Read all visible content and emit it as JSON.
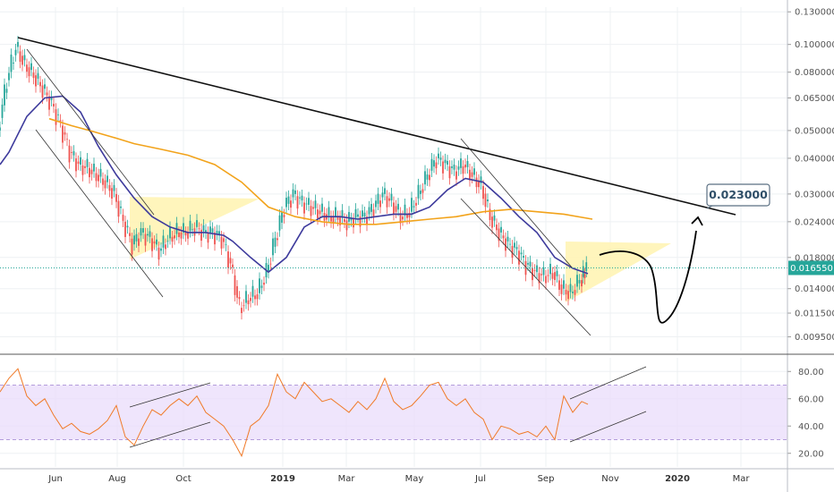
{
  "chart_data": {
    "type": "line",
    "panels": [
      {
        "name": "",
        "scale": "log",
        "y_ticks": [
          "0.130000",
          "0.100000",
          "0.080000",
          "0.065000",
          "0.050000",
          "0.040000",
          "0.030000",
          "0.024000",
          "0.018000",
          "0.014000",
          "0.011500",
          "0.009500"
        ],
        "current_price": "0.016550",
        "callout_label": "0.023000",
        "series": [
          {
            "name": "",
            "color": "#2f9e8f",
            "type": "candle-approx",
            "points": [
              [
                0,
                0.05
              ],
              [
                10,
                0.075
              ],
              [
                20,
                0.098
              ],
              [
                30,
                0.085
              ],
              [
                40,
                0.078
              ],
              [
                50,
                0.07
              ],
              [
                60,
                0.062
              ],
              [
                70,
                0.052
              ],
              [
                80,
                0.042
              ],
              [
                90,
                0.038
              ],
              [
                100,
                0.037
              ],
              [
                110,
                0.035
              ],
              [
                120,
                0.033
              ],
              [
                130,
                0.03
              ],
              [
                140,
                0.024
              ],
              [
                150,
                0.02
              ],
              [
                160,
                0.022
              ],
              [
                170,
                0.021
              ],
              [
                180,
                0.019
              ],
              [
                190,
                0.021
              ],
              [
                200,
                0.022
              ],
              [
                210,
                0.022
              ],
              [
                220,
                0.023
              ],
              [
                230,
                0.022
              ],
              [
                240,
                0.022
              ],
              [
                250,
                0.021
              ],
              [
                260,
                0.017
              ],
              [
                270,
                0.012
              ],
              [
                280,
                0.013
              ],
              [
                290,
                0.0135
              ],
              [
                300,
                0.016
              ],
              [
                310,
                0.021
              ],
              [
                320,
                0.027
              ],
              [
                330,
                0.03
              ],
              [
                340,
                0.028
              ],
              [
                350,
                0.027
              ],
              [
                360,
                0.026
              ],
              [
                370,
                0.025
              ],
              [
                380,
                0.025
              ],
              [
                390,
                0.024
              ],
              [
                400,
                0.025
              ],
              [
                410,
                0.025
              ],
              [
                420,
                0.027
              ],
              [
                430,
                0.03
              ],
              [
                440,
                0.028
              ],
              [
                450,
                0.025
              ],
              [
                460,
                0.026
              ],
              [
                470,
                0.03
              ],
              [
                480,
                0.035
              ],
              [
                490,
                0.04
              ],
              [
                500,
                0.038
              ],
              [
                510,
                0.036
              ],
              [
                520,
                0.038
              ],
              [
                530,
                0.035
              ],
              [
                540,
                0.032
              ],
              [
                550,
                0.025
              ],
              [
                560,
                0.022
              ],
              [
                570,
                0.02
              ],
              [
                580,
                0.019
              ],
              [
                590,
                0.017
              ],
              [
                600,
                0.016
              ],
              [
                610,
                0.0155
              ],
              [
                620,
                0.016
              ],
              [
                630,
                0.014
              ],
              [
                640,
                0.0135
              ],
              [
                650,
                0.015
              ],
              [
                657,
                0.01655
              ]
            ]
          },
          {
            "name": "",
            "color": "#3d3a9c",
            "points": [
              [
                0,
                0.038
              ],
              [
                10,
                0.042
              ],
              [
                30,
                0.056
              ],
              [
                50,
                0.065
              ],
              [
                70,
                0.066
              ],
              [
                90,
                0.058
              ],
              [
                110,
                0.044
              ],
              [
                130,
                0.035
              ],
              [
                150,
                0.029
              ],
              [
                170,
                0.025
              ],
              [
                190,
                0.023
              ],
              [
                210,
                0.022
              ],
              [
                230,
                0.022
              ],
              [
                250,
                0.0215
              ],
              [
                260,
                0.0205
              ],
              [
                280,
                0.018
              ],
              [
                300,
                0.016
              ],
              [
                320,
                0.018
              ],
              [
                340,
                0.023
              ],
              [
                360,
                0.025
              ],
              [
                380,
                0.025
              ],
              [
                400,
                0.0245
              ],
              [
                420,
                0.025
              ],
              [
                440,
                0.0255
              ],
              [
                460,
                0.0255
              ],
              [
                480,
                0.027
              ],
              [
                500,
                0.031
              ],
              [
                520,
                0.034
              ],
              [
                540,
                0.033
              ],
              [
                560,
                0.029
              ],
              [
                580,
                0.025
              ],
              [
                600,
                0.022
              ],
              [
                620,
                0.018
              ],
              [
                640,
                0.0165
              ],
              [
                657,
                0.0158
              ]
            ]
          },
          {
            "name": "",
            "color": "#f2a31b",
            "points": [
              [
                55,
                0.055
              ],
              [
                80,
                0.052
              ],
              [
                100,
                0.05
              ],
              [
                130,
                0.047
              ],
              [
                150,
                0.045
              ],
              [
                180,
                0.043
              ],
              [
                210,
                0.041
              ],
              [
                240,
                0.038
              ],
              [
                270,
                0.033
              ],
              [
                300,
                0.027
              ],
              [
                330,
                0.025
              ],
              [
                360,
                0.024
              ],
              [
                390,
                0.0235
              ],
              [
                420,
                0.0235
              ],
              [
                450,
                0.024
              ],
              [
                480,
                0.0245
              ],
              [
                510,
                0.025
              ],
              [
                540,
                0.026
              ],
              [
                570,
                0.0265
              ],
              [
                600,
                0.026
              ],
              [
                630,
                0.0255
              ],
              [
                662,
                0.0245
              ]
            ]
          }
        ]
      },
      {
        "name": "",
        "y_ticks": [
          "80.00",
          "60.00",
          "40.00",
          "20.00"
        ],
        "band": [
          30,
          70
        ],
        "series": [
          {
            "name": "",
            "color": "#f07a28",
            "points": [
              [
                0,
                65
              ],
              [
                10,
                75
              ],
              [
                20,
                82
              ],
              [
                30,
                62
              ],
              [
                40,
                55
              ],
              [
                50,
                60
              ],
              [
                60,
                48
              ],
              [
                70,
                38
              ],
              [
                80,
                42
              ],
              [
                90,
                36
              ],
              [
                100,
                34
              ],
              [
                110,
                38
              ],
              [
                120,
                44
              ],
              [
                130,
                55
              ],
              [
                140,
                32
              ],
              [
                150,
                26
              ],
              [
                160,
                40
              ],
              [
                170,
                52
              ],
              [
                180,
                48
              ],
              [
                190,
                55
              ],
              [
                200,
                60
              ],
              [
                210,
                55
              ],
              [
                220,
                62
              ],
              [
                230,
                50
              ],
              [
                240,
                45
              ],
              [
                250,
                40
              ],
              [
                260,
                30
              ],
              [
                270,
                18
              ],
              [
                280,
                40
              ],
              [
                290,
                45
              ],
              [
                300,
                55
              ],
              [
                310,
                78
              ],
              [
                320,
                65
              ],
              [
                330,
                60
              ],
              [
                340,
                72
              ],
              [
                350,
                65
              ],
              [
                360,
                58
              ],
              [
                370,
                60
              ],
              [
                380,
                55
              ],
              [
                390,
                50
              ],
              [
                400,
                58
              ],
              [
                410,
                52
              ],
              [
                420,
                60
              ],
              [
                430,
                75
              ],
              [
                440,
                58
              ],
              [
                450,
                52
              ],
              [
                460,
                55
              ],
              [
                470,
                62
              ],
              [
                480,
                70
              ],
              [
                490,
                72
              ],
              [
                500,
                60
              ],
              [
                510,
                55
              ],
              [
                520,
                60
              ],
              [
                530,
                50
              ],
              [
                540,
                45
              ],
              [
                550,
                30
              ],
              [
                560,
                40
              ],
              [
                570,
                38
              ],
              [
                580,
                34
              ],
              [
                590,
                36
              ],
              [
                600,
                32
              ],
              [
                610,
                40
              ],
              [
                620,
                30
              ],
              [
                630,
                62
              ],
              [
                640,
                50
              ],
              [
                650,
                58
              ],
              [
                657,
                56
              ]
            ]
          }
        ]
      }
    ],
    "x_ticks": [
      "Jun",
      "Aug",
      "Oct",
      "2019",
      "Mar",
      "May",
      "Jul",
      "Sep",
      "Nov",
      "2020",
      "Mar"
    ],
    "grid": true,
    "legend": "none"
  }
}
